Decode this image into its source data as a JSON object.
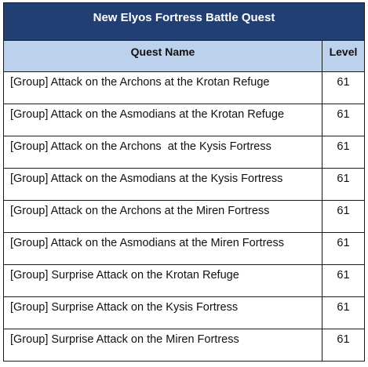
{
  "table": {
    "title": "New Elyos Fortress Battle Quest",
    "headers": {
      "name": "Quest Name",
      "level": "Level"
    },
    "rows": [
      {
        "name": "[Group] Attack on the Archons at the Krotan Refuge",
        "level": "61"
      },
      {
        "name": "[Group] Attack on the Asmodians at the Krotan Refuge",
        "level": "61"
      },
      {
        "name": "[Group] Attack on the Archons  at the Kysis Fortress",
        "level": "61"
      },
      {
        "name": "[Group] Attack on the Asmodians at the Kysis Fortress",
        "level": "61"
      },
      {
        "name": "[Group] Attack on the Archons at the Miren Fortress",
        "level": "61"
      },
      {
        "name": "[Group] Attack on the Asmodians at the Miren Fortress",
        "level": "61"
      },
      {
        "name": "[Group] Surprise Attack on the Krotan Refuge",
        "level": "61"
      },
      {
        "name": "[Group] Surprise Attack on the Kysis Fortress",
        "level": "61"
      },
      {
        "name": "[Group] Surprise Attack on the Miren Fortress",
        "level": "61"
      }
    ],
    "colors": {
      "title_bg": "#213f73",
      "header_bg": "#bcd1eb"
    }
  }
}
